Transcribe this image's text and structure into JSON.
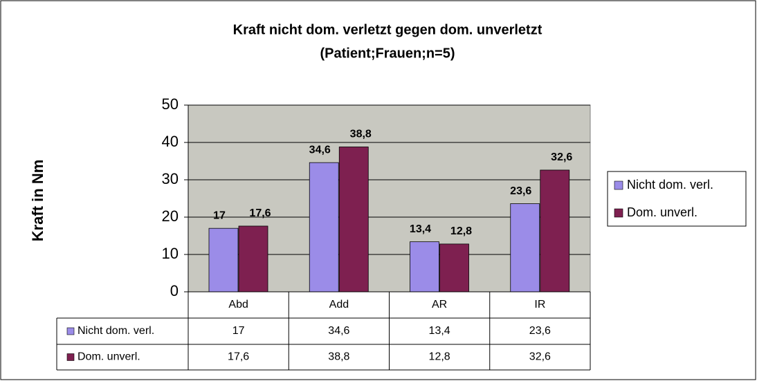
{
  "chart_data": {
    "type": "bar",
    "title": "Kraft nicht dom. verletzt gegen dom. unverletzt",
    "subtitle": "(Patient;Frauen;n=5)",
    "y_label": "Kraft in Nm",
    "categories": [
      "Abd",
      "Add",
      "AR",
      "IR"
    ],
    "series": [
      {
        "name": "Nicht dom. verl.",
        "color": "#9b8ce8",
        "values": [
          17,
          34.6,
          13.4,
          23.6
        ],
        "value_labels": [
          "17",
          "34,6",
          "13,4",
          "23,6"
        ]
      },
      {
        "name": "Dom. unverl.",
        "color": "#7e2050",
        "values": [
          17.6,
          38.8,
          12.8,
          32.6
        ],
        "value_labels": [
          "17,6",
          "38,8",
          "12,8",
          "32,6"
        ]
      }
    ],
    "ylim": [
      0,
      50
    ],
    "yticks": [
      0,
      10,
      20,
      30,
      40,
      50
    ],
    "grid": true,
    "legend": "right"
  }
}
